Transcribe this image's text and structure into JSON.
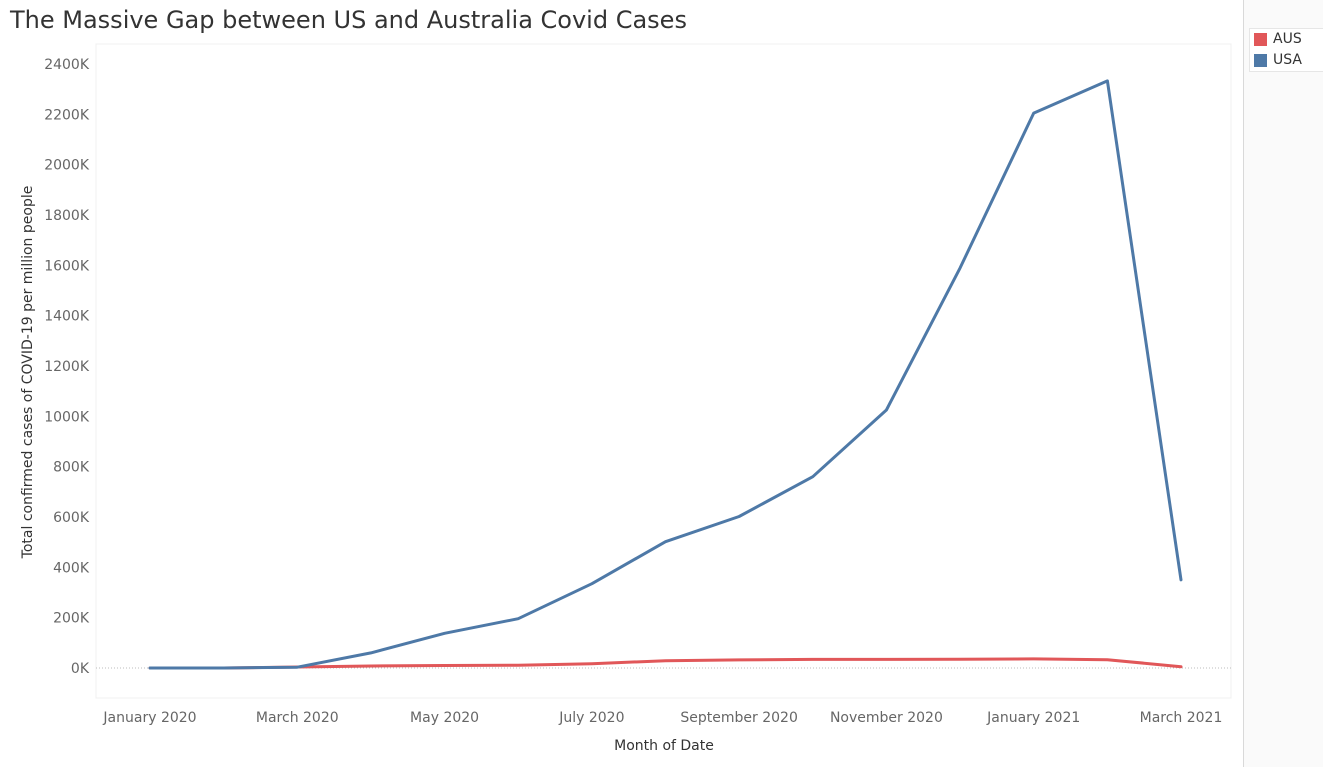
{
  "chart_data": {
    "type": "line",
    "title": "The Massive Gap between US and Australia Covid Cases",
    "xlabel": "Month of Date",
    "ylabel": "Total confirmed cases of COVID-19 per million people",
    "x": [
      "2020-01",
      "2020-02",
      "2020-03",
      "2020-04",
      "2020-05",
      "2020-06",
      "2020-07",
      "2020-08",
      "2020-09",
      "2020-10",
      "2020-11",
      "2020-12",
      "2021-01",
      "2021-02",
      "2021-03"
    ],
    "x_tick_labels": [
      "January 2020",
      "March 2020",
      "May 2020",
      "July 2020",
      "September 2020",
      "November 2020",
      "January 2021",
      "March 2021"
    ],
    "y_tick_labels": [
      "0K",
      "200K",
      "400K",
      "600K",
      "800K",
      "1000K",
      "1200K",
      "1400K",
      "1600K",
      "1800K",
      "2000K",
      "2200K",
      "2400K"
    ],
    "y_ticks": [
      0,
      200000,
      400000,
      600000,
      800000,
      1000000,
      1200000,
      1400000,
      1600000,
      1800000,
      2000000,
      2200000,
      2400000
    ],
    "ylim": [
      0,
      2400000
    ],
    "series": [
      {
        "name": "AUS",
        "color": "#e15759",
        "values": [
          0,
          0,
          4000,
          8000,
          10000,
          11000,
          17000,
          29000,
          32000,
          34000,
          34000,
          35000,
          36000,
          33000,
          5000
        ]
      },
      {
        "name": "USA",
        "color": "#4e79a7",
        "values": [
          0,
          0,
          3000,
          60000,
          138000,
          196000,
          335000,
          502000,
          602000,
          760000,
          1025000,
          1590000,
          2205000,
          2333000,
          350000
        ]
      }
    ],
    "grid": false,
    "legend": "right"
  },
  "legend": {
    "items": [
      {
        "label": "AUS",
        "color": "#e15759"
      },
      {
        "label": "USA",
        "color": "#4e79a7"
      }
    ]
  }
}
